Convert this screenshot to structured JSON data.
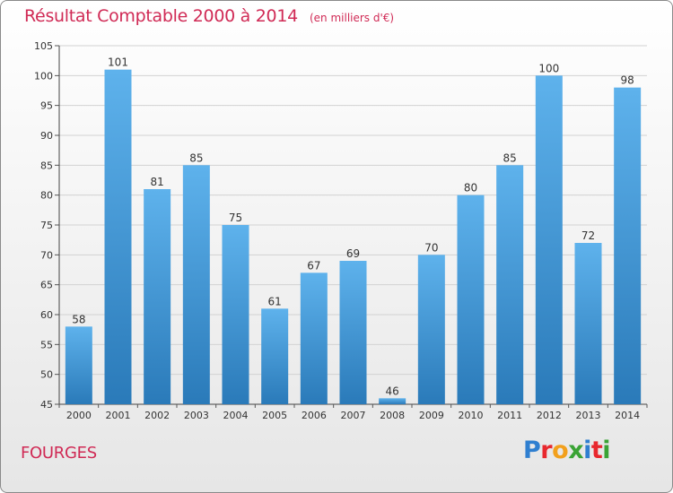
{
  "title": "Résultat Comptable 2000 à 2014",
  "unit": "(en milliers d'€)",
  "commune": "FOURGES",
  "brand": {
    "letters": [
      {
        "ch": "P",
        "color": "#2f7fd0"
      },
      {
        "ch": "r",
        "color": "#e8282e"
      },
      {
        "ch": "o",
        "color": "#f2a01c"
      },
      {
        "ch": "x",
        "color": "#3aa335"
      },
      {
        "ch": "i",
        "color": "#2f7fd0"
      },
      {
        "ch": "t",
        "color": "#e8282e"
      },
      {
        "ch": "i",
        "color": "#3aa335"
      }
    ]
  },
  "colors": {
    "title": "#d02a55",
    "bar_light": "#5eb2ec",
    "bar_dark": "#2a7ab9"
  },
  "chart_data": {
    "type": "bar",
    "categories": [
      "2000",
      "2001",
      "2002",
      "2003",
      "2004",
      "2005",
      "2006",
      "2007",
      "2008",
      "2009",
      "2010",
      "2011",
      "2012",
      "2013",
      "2014"
    ],
    "values": [
      58,
      101,
      81,
      85,
      75,
      61,
      67,
      69,
      46,
      70,
      80,
      85,
      100,
      72,
      98
    ],
    "ylim": [
      45,
      105
    ],
    "yticks": [
      45,
      50,
      55,
      60,
      65,
      70,
      75,
      80,
      85,
      90,
      95,
      100,
      105
    ],
    "grid": true,
    "data_labels": true
  }
}
